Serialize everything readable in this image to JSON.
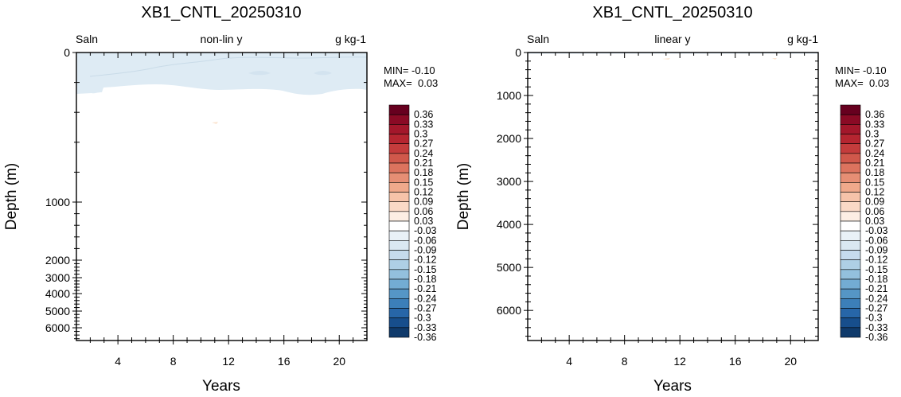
{
  "colorbar": {
    "levels": [
      "0.36",
      "0.33",
      "0.3",
      "0.27",
      "0.24",
      "0.21",
      "0.18",
      "0.15",
      "0.12",
      "0.09",
      "0.06",
      "0.03",
      "-0.03",
      "-0.06",
      "-0.09",
      "-0.12",
      "-0.15",
      "-0.18",
      "-0.21",
      "-0.24",
      "-0.27",
      "-0.3",
      "-0.33",
      "-0.36"
    ],
    "colors": [
      "#67001f",
      "#8a0a25",
      "#a3172b",
      "#b52530",
      "#c43c3c",
      "#d0584b",
      "#dc735e",
      "#e68e74",
      "#f0a98b",
      "#f6c3a9",
      "#fad9c6",
      "#fdeee4",
      "#ffffff",
      "#e9f1f7",
      "#dae8f2",
      "#c6dbed",
      "#aecfe5",
      "#93c0dd",
      "#73acd3",
      "#5596c6",
      "#3c7fb9",
      "#2766a8",
      "#174e8c",
      "#0f3a6b"
    ]
  },
  "chart_data": [
    {
      "type": "heatmap",
      "title": "XB1_CNTL_20250310",
      "left_label": "Saln",
      "center_label": "non-lin y",
      "right_label": "g kg-1",
      "xlabel": "Years",
      "ylabel": "Depth (m)",
      "xlim": [
        1,
        22
      ],
      "xticks": [
        4,
        8,
        12,
        16,
        20
      ],
      "ylim": [
        0,
        6700
      ],
      "y_scale": "nonlinear",
      "yticks": [
        0,
        1000,
        2000,
        3000,
        4000,
        5000,
        6000
      ],
      "min_text": "MIN= -0.10",
      "max_text": "MAX=  0.03",
      "field_summary": {
        "min": -0.1,
        "max": 0.03,
        "dominant_anomaly": -0.03,
        "depth_range_of_anomaly": [
          0,
          300
        ]
      }
    },
    {
      "type": "heatmap",
      "title": "XB1_CNTL_20250310",
      "left_label": "Saln",
      "center_label": "linear y",
      "right_label": "g kg-1",
      "xlabel": "Years",
      "ylabel": "Depth (m)",
      "xlim": [
        1,
        22
      ],
      "xticks": [
        4,
        8,
        12,
        16,
        20
      ],
      "ylim": [
        0,
        6700
      ],
      "y_scale": "linear",
      "yticks": [
        0,
        1000,
        2000,
        3000,
        4000,
        5000,
        6000
      ],
      "min_text": "MIN= -0.10",
      "max_text": "MAX=  0.03",
      "field_summary": {
        "min": -0.1,
        "max": 0.03
      }
    }
  ]
}
